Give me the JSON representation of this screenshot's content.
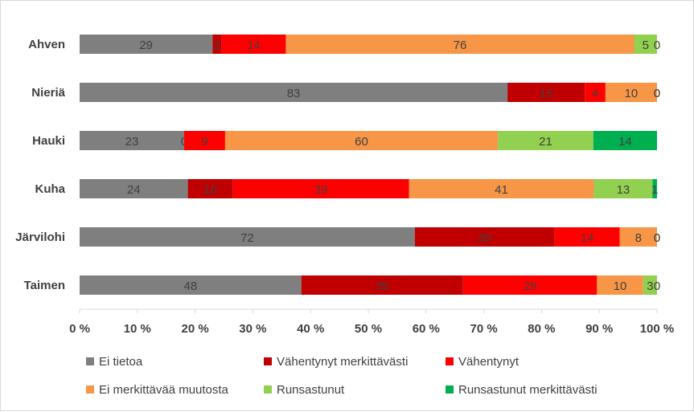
{
  "chart_data": {
    "type": "bar",
    "orientation": "horizontal",
    "stacked": "percent",
    "categories": [
      "Ahven",
      "Nieriä",
      "Hauki",
      "Kuha",
      "Järvilohi",
      "Taimen"
    ],
    "series": [
      {
        "name": "Ei tietoa",
        "color": "#7f7f7f",
        "values": [
          29,
          83,
          23,
          24,
          72,
          48
        ]
      },
      {
        "name": "Vähentynyt merkittävästi",
        "color": "#c00000",
        "values": [
          2,
          15,
          0,
          10,
          30,
          35
        ]
      },
      {
        "name": "Vähentynyt",
        "color": "#ff0000",
        "values": [
          14,
          4,
          9,
          39,
          14,
          29
        ]
      },
      {
        "name": "Ei merkittävää muutosta",
        "color": "#f79646",
        "values": [
          76,
          10,
          60,
          41,
          8,
          10
        ]
      },
      {
        "name": "Runsastunut",
        "color": "#92d050",
        "values": [
          5,
          0,
          21,
          13,
          0,
          3
        ]
      },
      {
        "name": "Runsastunut merkittävästi",
        "color": "#00b050",
        "values": [
          0,
          0,
          14,
          1,
          0,
          0
        ]
      }
    ],
    "x_ticks": [
      "0 %",
      "10 %",
      "20 %",
      "30 %",
      "40 %",
      "50 %",
      "60 %",
      "70 %",
      "80 %",
      "90 %",
      "100 %"
    ],
    "xlim": [
      0,
      100
    ],
    "grid": false,
    "legend_position": "bottom"
  }
}
